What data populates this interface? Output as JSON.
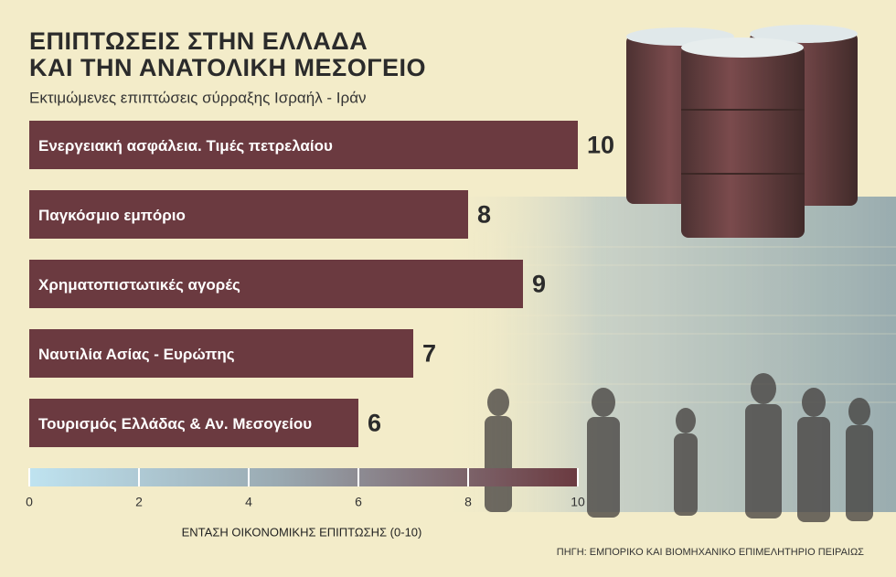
{
  "chart_data": {
    "type": "bar",
    "orientation": "horizontal",
    "title": [
      "ΕΠΙΠΤΩΣΕΙΣ ΣΤΗΝ ΕΛΛΑΔΑ",
      "ΚΑΙ ΤΗΝ ΑΝΑΤΟΛΙΚΗ ΜΕΣΟΓΕΙΟ"
    ],
    "subtitle": "Εκτιμώμενες επιπτώσεις σύρραξης Ισραήλ - Ιράν",
    "categories": [
      "Ενεργειακή ασφάλεια. Τιμές πετρελαίου",
      "Παγκόσμιο εμπόριο",
      "Χρηματοπιστωτικές αγορές",
      "Ναυτιλία Ασίας - Ευρώπης",
      "Τουρισμός Ελλάδας & Αν. Μεσογείου"
    ],
    "values": [
      10,
      8,
      9,
      7,
      6
    ],
    "color": "#6b3a40",
    "xlim": [
      0,
      10
    ],
    "xticks": [
      0,
      2,
      4,
      6,
      8,
      10
    ],
    "xlabel": "ΕΝΤΑΣΗ ΟΙΚΟΝΟΜΙΚΗΣ ΕΠΙΠΤΩΣΗΣ (0-10)",
    "source": "ΠΗΓΗ: ΕΜΠΟΡΙΚΟ ΚΑΙ ΒΙΟΜΗΧΑΝΙΚΟ ΕΠΙΜΕΛΗΤΗΡΙΟ ΠΕΙΡΑΙΩΣ"
  }
}
